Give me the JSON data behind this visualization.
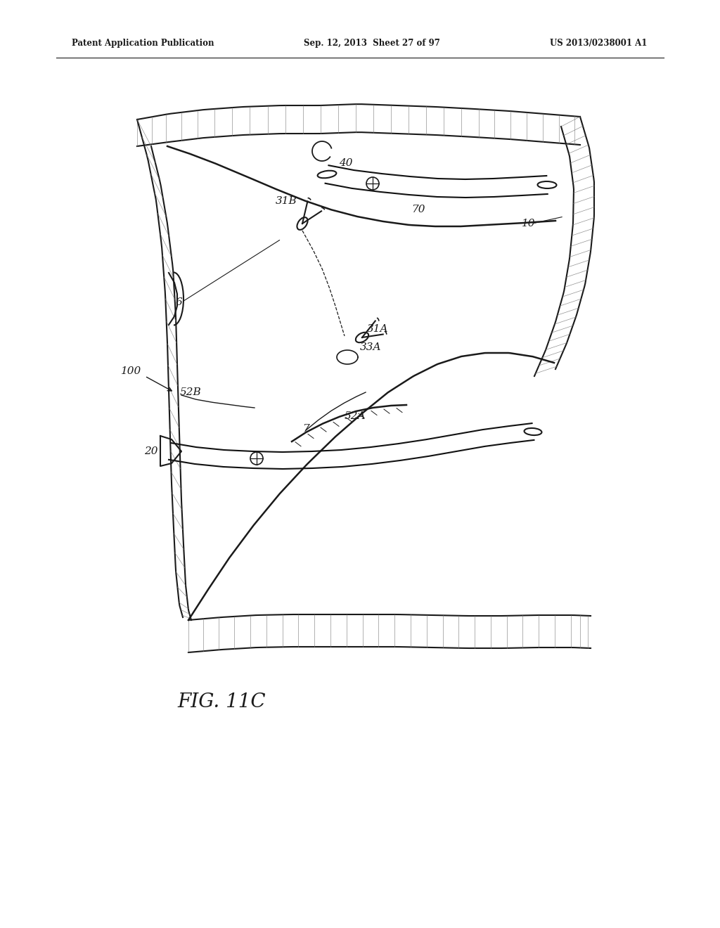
{
  "header_left": "Patent Application Publication",
  "header_mid": "Sep. 12, 2013  Sheet 27 of 97",
  "header_right": "US 2013/0238001 A1",
  "figure_label": "FIG. 11C",
  "bg_color": "#ffffff",
  "line_color": "#1a1a1a",
  "text_color": "#1a1a1a"
}
